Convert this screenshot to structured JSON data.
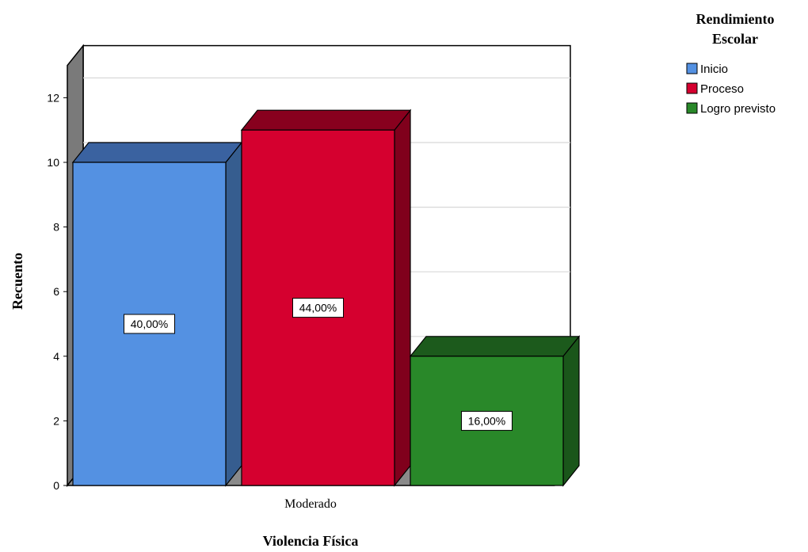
{
  "chart_data": {
    "type": "bar",
    "title": "",
    "xlabel": "Violencia Física",
    "ylabel": "Recuento",
    "categories": [
      "Moderado"
    ],
    "series": [
      {
        "name": "Inicio",
        "values": [
          10
        ],
        "data_label": "40,00%",
        "color": "#5491e2",
        "side_color": "#365d8f",
        "top_color": "#3a62a0"
      },
      {
        "name": "Proceso",
        "values": [
          11
        ],
        "data_label": "44,00%",
        "color": "#d5002f",
        "side_color": "#80001c",
        "top_color": "#88001e"
      },
      {
        "name": "Logro previsto",
        "values": [
          4
        ],
        "data_label": "16,00%",
        "color": "#298829",
        "side_color": "#1a561a",
        "top_color": "#1c5a1c"
      }
    ],
    "ylim": [
      0,
      13
    ],
    "yticks": [
      0,
      2,
      4,
      6,
      8,
      10,
      12
    ],
    "grid": true,
    "legend": {
      "title": "Rendimiento Escolar",
      "placement": "top-right"
    },
    "style": "3d"
  }
}
